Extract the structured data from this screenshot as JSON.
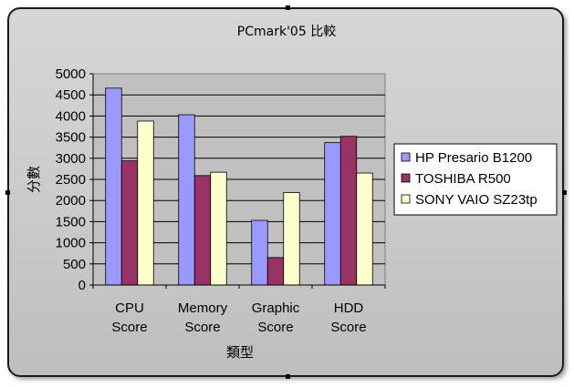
{
  "chart_data": {
    "type": "bar",
    "title": "PCmark'05  比較",
    "xlabel": "類型",
    "ylabel": "分數",
    "categories": [
      [
        "CPU",
        "Score"
      ],
      [
        "Memory",
        "Score"
      ],
      [
        "Graphic",
        "Score"
      ],
      [
        "HDD",
        "Score"
      ]
    ],
    "ylim": [
      0,
      5000
    ],
    "yticks": [
      "0",
      "500",
      "1000",
      "1500",
      "2000",
      "2500",
      "3000",
      "3500",
      "4000",
      "4500",
      "5000"
    ],
    "grid": true,
    "legend_position": "right",
    "series": [
      {
        "name": "HP  Presario  B1200",
        "color": "#9999ff",
        "values": [
          4660,
          4030,
          1530,
          3370
        ]
      },
      {
        "name": "TOSHIBA  R500",
        "color": "#993366",
        "values": [
          2940,
          2590,
          650,
          3520
        ]
      },
      {
        "name": "SONY  VAIO  SZ23tp",
        "color": "#ffffcc",
        "values": [
          3880,
          2670,
          2190,
          2650
        ]
      }
    ],
    "plot_background": "#c0c0c0"
  }
}
